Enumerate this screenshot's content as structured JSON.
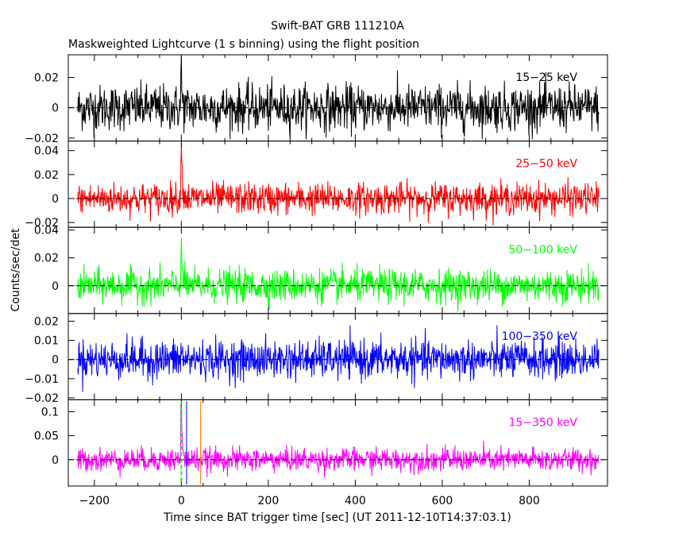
{
  "title": "Swift-BAT GRB 111210A",
  "subtitle": "Maskweighted Lightcurve (1 s binning) using the flight position",
  "xlabel": "Time since BAT trigger time [sec] (UT 2011-12-10T14:37:03.1)",
  "ylabel": "Counts/sec/det",
  "colors": {
    "black": "#000000",
    "red": "#ff0000",
    "green": "#00ff00",
    "blue": "#0000ff",
    "magenta": "#ff00ff",
    "orange": "#ff8000"
  },
  "chart_data": {
    "type": "line",
    "xlim": [
      -260,
      980
    ],
    "xticks": [
      -200,
      0,
      200,
      400,
      600,
      800
    ],
    "data_range": [
      -238,
      960
    ],
    "binning_sec": 1,
    "marker_lines": [
      {
        "x": 0,
        "color": "#00ff00",
        "style": "dashed"
      },
      {
        "x": 12,
        "color": "#0000ff",
        "style": "solid"
      },
      {
        "x": 44,
        "color": "#ff8000",
        "style": "solid"
      }
    ],
    "panels": [
      {
        "band": "15-25 keV",
        "color": "#000000",
        "ylim": [
          -0.022,
          0.035
        ],
        "yticks": [
          -0.02,
          0,
          0.02
        ],
        "noise_sigma": 0.0075,
        "spike": {
          "peak": 0.026,
          "decay_sec": 1.5
        }
      },
      {
        "band": "25-50 keV",
        "color": "#ff0000",
        "ylim": [
          -0.024,
          0.048
        ],
        "yticks": [
          -0.02,
          0,
          0.02,
          0.04
        ],
        "noise_sigma": 0.0065,
        "spike": {
          "peak": 0.045,
          "decay_sec": 2.5
        }
      },
      {
        "band": "50-100 keV",
        "color": "#00ff00",
        "ylim": [
          -0.02,
          0.042
        ],
        "yticks": [
          0,
          0.02,
          0.04
        ],
        "noise_sigma": 0.0058,
        "spike": {
          "peak": 0.033,
          "decay_sec": 2.0
        }
      },
      {
        "band": "100-350 keV",
        "color": "#0000ff",
        "ylim": [
          -0.021,
          0.024
        ],
        "yticks": [
          -0.02,
          -0.01,
          0,
          0.01,
          0.02
        ],
        "noise_sigma": 0.005,
        "spike": {
          "peak": 0.004,
          "decay_sec": 1.0
        }
      },
      {
        "band": "15-350 keV",
        "color": "#ff00ff",
        "ylim": [
          -0.055,
          0.125
        ],
        "yticks": [
          0,
          0.05,
          0.1
        ],
        "noise_sigma": 0.012,
        "spike": {
          "peak": 0.112,
          "decay_sec": 2.0
        }
      }
    ]
  }
}
